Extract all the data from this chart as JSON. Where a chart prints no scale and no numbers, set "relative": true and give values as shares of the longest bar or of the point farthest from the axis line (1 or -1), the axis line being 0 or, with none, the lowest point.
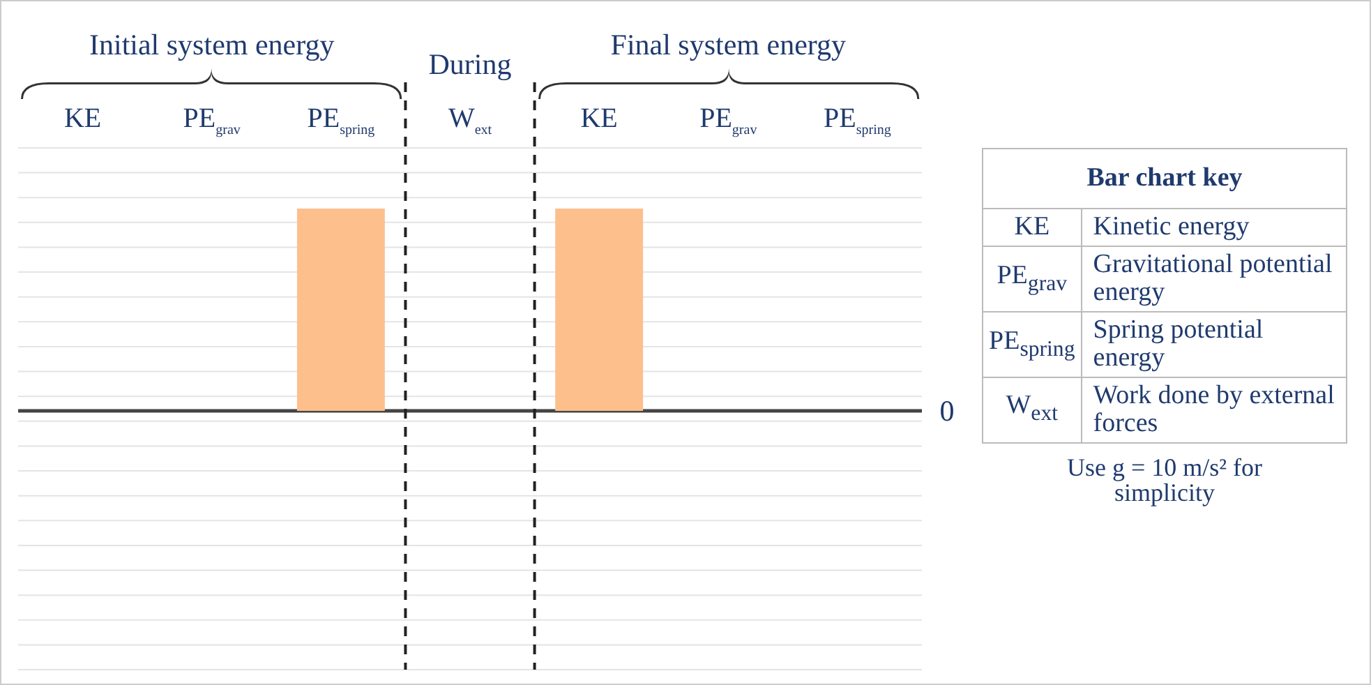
{
  "chart_data": [
    {
      "type": "bar",
      "relative": true,
      "categories": [
        "KE",
        "PE$_{grav}$",
        "PE$_{spring}$",
        "W$_{ext}$",
        "KE",
        "PE$_{grav}$",
        "PE$_{spring}$"
      ],
      "values": [
        0,
        0,
        1,
        0,
        1,
        0,
        0
      ],
      "color": "#fdbf8c",
      "grid": "y",
      "annotations": [
        "Initial system energy",
        "During",
        "Final system energy",
        "0"
      ]
    },
    {
      "type": "other",
      "title": "Bar chart key",
      "annotations": [
        "KE",
        "Kinetic energy",
        "PE$_{grav}$",
        "Gravitational potential energy",
        "PE$_{spring}$",
        "Spring potential energy",
        "W$_{ext}$",
        "Work done by external forces",
        "Use g = 10 m/s² for simplicity"
      ]
    }
  ]
}
